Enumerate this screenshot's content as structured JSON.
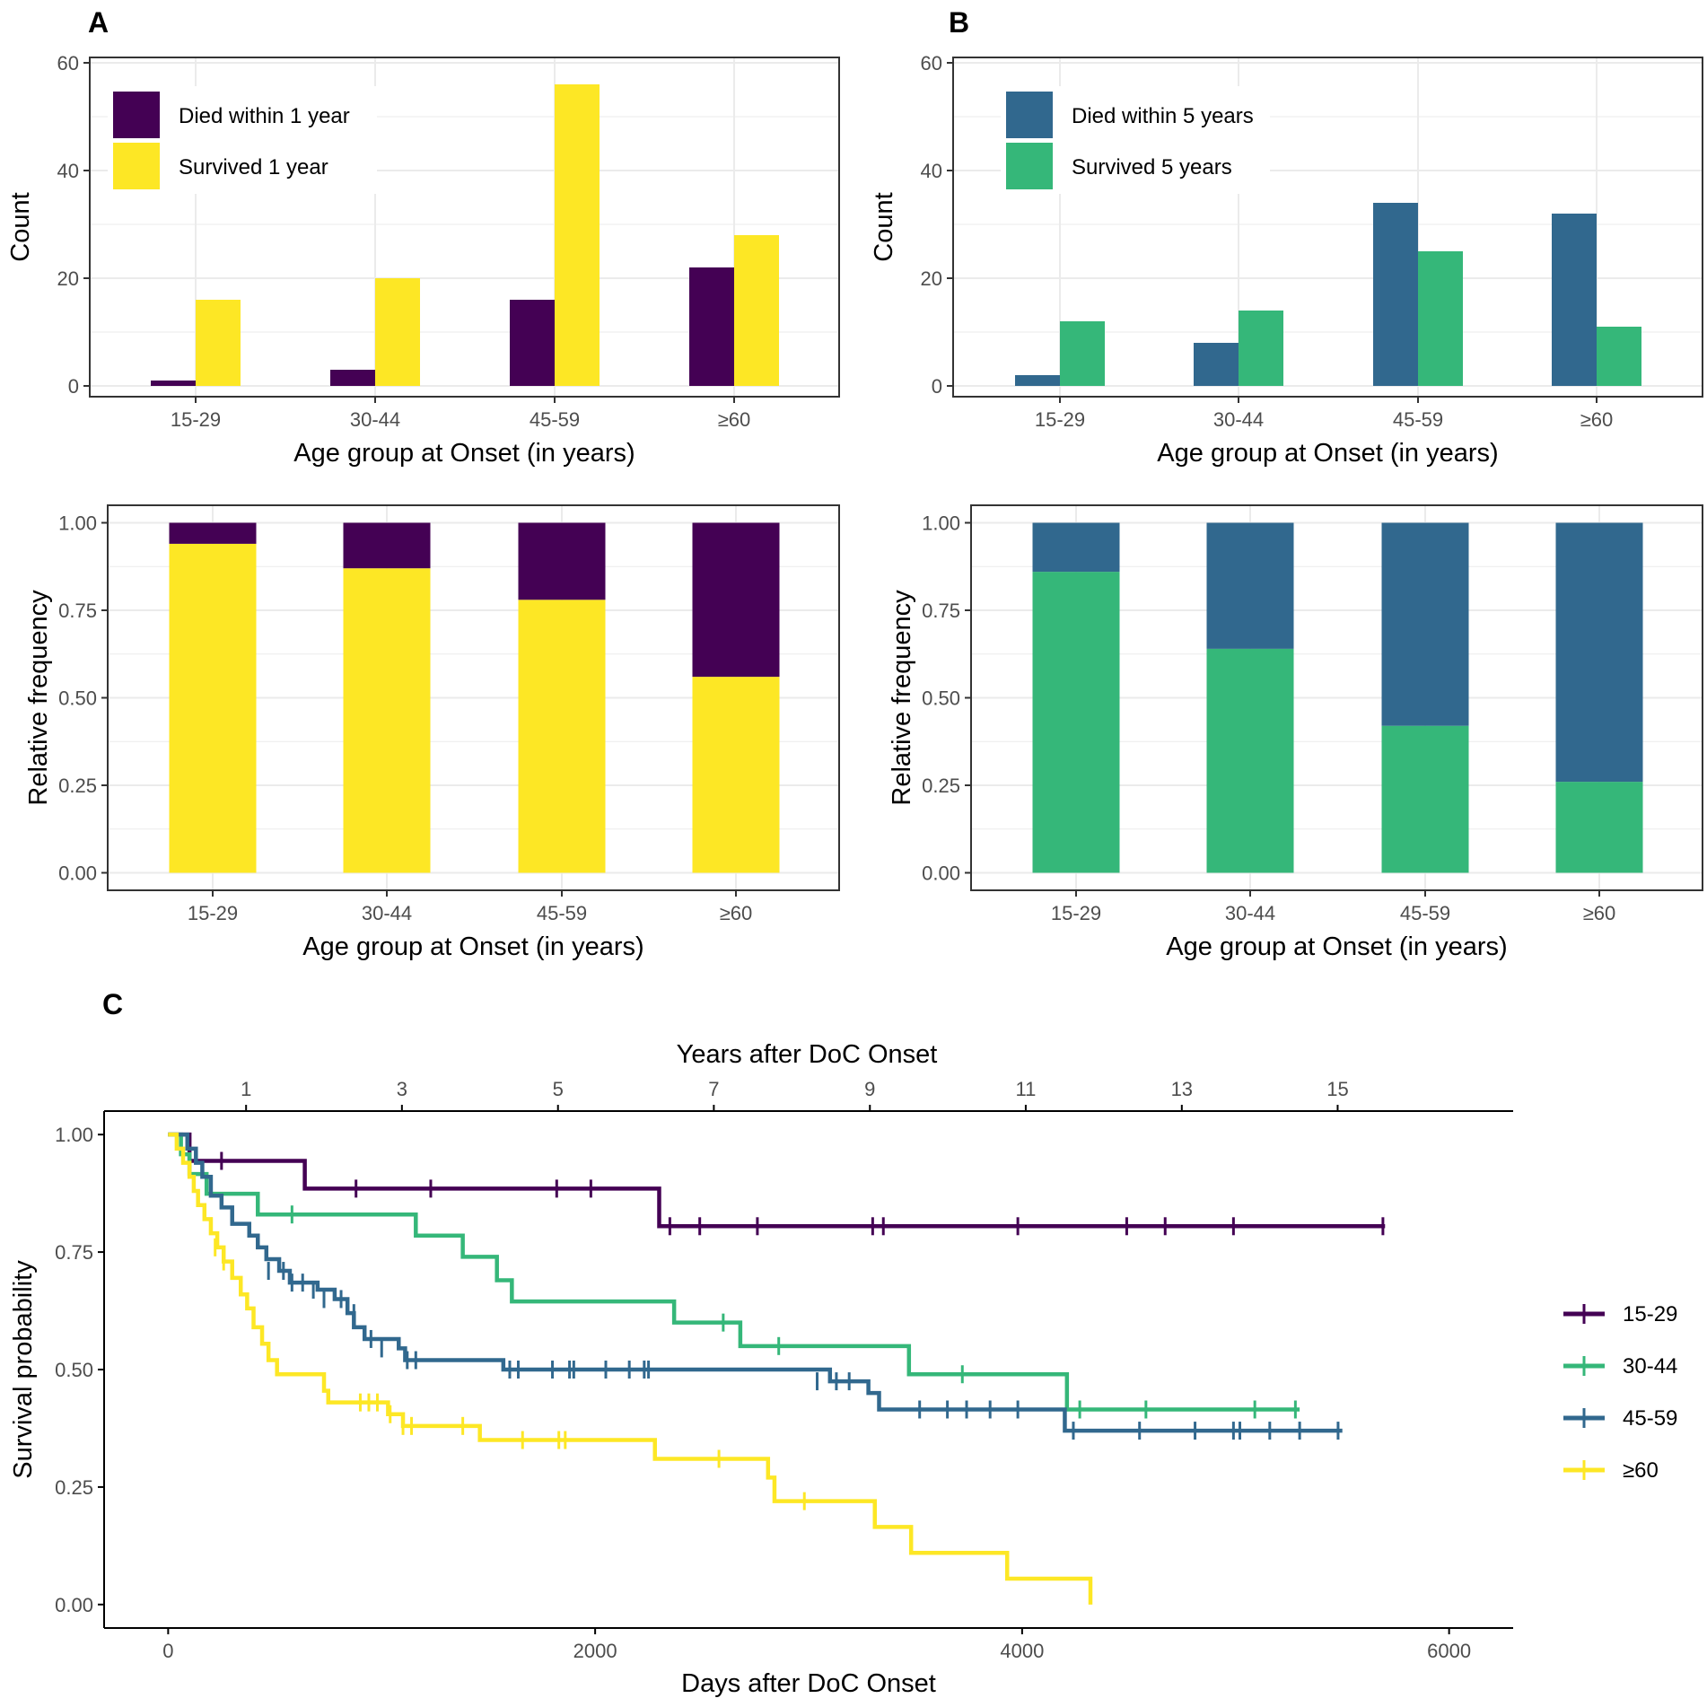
{
  "figure": {
    "panel_labels": [
      "A",
      "B",
      "C"
    ]
  },
  "colors": {
    "died_1y": "#440154",
    "survived_1y": "#FDE725",
    "died_5y": "#31688E",
    "survived_5y": "#35B779",
    "g15_29": "#440154",
    "g30_44": "#35B779",
    "g45_59": "#31688E",
    "g60": "#FDE725",
    "grid": "#ebebeb",
    "frame": "#333333"
  },
  "chart_data": [
    {
      "id": "A-count",
      "panel": "A",
      "type": "bar",
      "categories": [
        "15-29",
        "30-44",
        "45-59",
        "≥60"
      ],
      "series": [
        {
          "name": "Died within 1 year",
          "color_key": "died_1y",
          "values": [
            1,
            3,
            16,
            22
          ]
        },
        {
          "name": "Survived 1 year",
          "color_key": "survived_1y",
          "values": [
            16,
            20,
            56,
            28
          ]
        }
      ],
      "xlabel": "Age group at Onset (in years)",
      "ylabel": "Count",
      "ylim": [
        -2,
        61
      ],
      "yticks": [
        0,
        20,
        40,
        60
      ],
      "legend": "top-left",
      "grid": true
    },
    {
      "id": "A-rel",
      "panel": "A",
      "type": "bar",
      "stacked": true,
      "categories": [
        "15-29",
        "30-44",
        "45-59",
        "≥60"
      ],
      "series": [
        {
          "name": "Survived 1 year",
          "color_key": "survived_1y",
          "values": [
            0.94,
            0.87,
            0.78,
            0.56
          ]
        },
        {
          "name": "Died within 1 year",
          "color_key": "died_1y",
          "values": [
            0.06,
            0.13,
            0.22,
            0.44
          ]
        }
      ],
      "xlabel": "Age group at Onset (in years)",
      "ylabel": "Relative frequency",
      "ylim": [
        -0.05,
        1.05
      ],
      "yticks": [
        0.0,
        0.25,
        0.5,
        0.75,
        1.0
      ],
      "ytick_labels": [
        "0.00",
        "0.25",
        "0.50",
        "0.75",
        "1.00"
      ],
      "grid": true
    },
    {
      "id": "B-count",
      "panel": "B",
      "type": "bar",
      "categories": [
        "15-29",
        "30-44",
        "45-59",
        "≥60"
      ],
      "series": [
        {
          "name": "Died within 5 years",
          "color_key": "died_5y",
          "values": [
            2,
            8,
            34,
            32
          ]
        },
        {
          "name": "Survived 5 years",
          "color_key": "survived_5y",
          "values": [
            12,
            14,
            25,
            11
          ]
        }
      ],
      "xlabel": "Age group at Onset (in years)",
      "ylabel": "Count",
      "ylim": [
        -2,
        61
      ],
      "yticks": [
        0,
        20,
        40,
        60
      ],
      "legend": "top-left",
      "grid": true
    },
    {
      "id": "B-rel",
      "panel": "B",
      "type": "bar",
      "stacked": true,
      "categories": [
        "15-29",
        "30-44",
        "45-59",
        "≥60"
      ],
      "series": [
        {
          "name": "Survived 5 years",
          "color_key": "survived_5y",
          "values": [
            0.86,
            0.64,
            0.42,
            0.26
          ]
        },
        {
          "name": "Died within 5 years",
          "color_key": "died_5y",
          "values": [
            0.14,
            0.36,
            0.58,
            0.74
          ]
        }
      ],
      "xlabel": "Age group at Onset (in years)",
      "ylabel": "Relative frequency",
      "ylim": [
        -0.05,
        1.05
      ],
      "yticks": [
        0.0,
        0.25,
        0.5,
        0.75,
        1.0
      ],
      "ytick_labels": [
        "0.00",
        "0.25",
        "0.50",
        "0.75",
        "1.00"
      ],
      "grid": true
    },
    {
      "id": "C-km",
      "panel": "C",
      "type": "line",
      "step": true,
      "xlabel": "Days after DoC Onset",
      "ylabel": "Survival probability",
      "top_xlabel": "Years after DoC Onset",
      "xlim": [
        -300,
        6300
      ],
      "ylim": [
        -0.05,
        1.05
      ],
      "xticks": [
        0,
        2000,
        4000,
        6000
      ],
      "yticks": [
        0.0,
        0.25,
        0.5,
        0.75,
        1.0
      ],
      "ytick_labels": [
        "0.00",
        "0.25",
        "0.50",
        "0.75",
        "1.00"
      ],
      "top_ticks": [
        {
          "label": "1",
          "days": 365
        },
        {
          "label": "3",
          "days": 1095
        },
        {
          "label": "5",
          "days": 1826
        },
        {
          "label": "7",
          "days": 2556
        },
        {
          "label": "9",
          "days": 3287
        },
        {
          "label": "11",
          "days": 4017
        },
        {
          "label": "13",
          "days": 4748
        },
        {
          "label": "15",
          "days": 5478
        }
      ],
      "legend": "right",
      "series": [
        {
          "name": "15-29",
          "color_key": "g15_29",
          "steps": [
            [
              0,
              1.0
            ],
            [
              100,
              0.944
            ],
            [
              640,
              0.885
            ],
            [
              2300,
              0.805
            ],
            [
              5700,
              0.805
            ]
          ],
          "censors": [
            [
              250,
              0.944
            ],
            [
              880,
              0.885
            ],
            [
              1230,
              0.885
            ],
            [
              1820,
              0.885
            ],
            [
              1980,
              0.885
            ],
            [
              2350,
              0.805
            ],
            [
              2490,
              0.805
            ],
            [
              2760,
              0.805
            ],
            [
              3300,
              0.805
            ],
            [
              3350,
              0.805
            ],
            [
              3980,
              0.805
            ],
            [
              4490,
              0.805
            ],
            [
              4670,
              0.805
            ],
            [
              4990,
              0.805
            ],
            [
              5690,
              0.805
            ]
          ]
        },
        {
          "name": "30-44",
          "color_key": "g30_44",
          "steps": [
            [
              0,
              1.0
            ],
            [
              60,
              0.958
            ],
            [
              100,
              0.916
            ],
            [
              180,
              0.874
            ],
            [
              420,
              0.83
            ],
            [
              1160,
              0.785
            ],
            [
              1380,
              0.74
            ],
            [
              1540,
              0.69
            ],
            [
              1610,
              0.645
            ],
            [
              2370,
              0.6
            ],
            [
              2680,
              0.55
            ],
            [
              3470,
              0.49
            ],
            [
              4210,
              0.415
            ],
            [
              5300,
              0.415
            ]
          ],
          "censors": [
            [
              580,
              0.83
            ],
            [
              2600,
              0.6
            ],
            [
              2860,
              0.55
            ],
            [
              3720,
              0.49
            ],
            [
              4270,
              0.415
            ],
            [
              4580,
              0.415
            ],
            [
              5090,
              0.415
            ],
            [
              5280,
              0.415
            ]
          ]
        },
        {
          "name": "45-59",
          "color_key": "g45_59",
          "steps": [
            [
              0,
              1.0
            ],
            [
              90,
              0.97
            ],
            [
              130,
              0.94
            ],
            [
              160,
              0.91
            ],
            [
              200,
              0.87
            ],
            [
              250,
              0.845
            ],
            [
              300,
              0.81
            ],
            [
              380,
              0.785
            ],
            [
              420,
              0.76
            ],
            [
              460,
              0.735
            ],
            [
              520,
              0.71
            ],
            [
              570,
              0.685
            ],
            [
              700,
              0.67
            ],
            [
              780,
              0.65
            ],
            [
              840,
              0.62
            ],
            [
              870,
              0.59
            ],
            [
              920,
              0.565
            ],
            [
              1080,
              0.545
            ],
            [
              1110,
              0.52
            ],
            [
              1570,
              0.5
            ],
            [
              3100,
              0.475
            ],
            [
              3280,
              0.45
            ],
            [
              3330,
              0.415
            ],
            [
              4200,
              0.37
            ],
            [
              5500,
              0.37
            ]
          ],
          "censors": [
            [
              470,
              0.71
            ],
            [
              540,
              0.71
            ],
            [
              580,
              0.685
            ],
            [
              630,
              0.685
            ],
            [
              680,
              0.67
            ],
            [
              730,
              0.65
            ],
            [
              810,
              0.65
            ],
            [
              870,
              0.62
            ],
            [
              950,
              0.565
            ],
            [
              1000,
              0.545
            ],
            [
              1120,
              0.52
            ],
            [
              1160,
              0.52
            ],
            [
              1600,
              0.5
            ],
            [
              1640,
              0.5
            ],
            [
              1800,
              0.5
            ],
            [
              1880,
              0.5
            ],
            [
              1900,
              0.5
            ],
            [
              2050,
              0.5
            ],
            [
              2160,
              0.5
            ],
            [
              2230,
              0.5
            ],
            [
              2250,
              0.5
            ],
            [
              3040,
              0.475
            ],
            [
              3130,
              0.475
            ],
            [
              3190,
              0.475
            ],
            [
              3520,
              0.415
            ],
            [
              3650,
              0.415
            ],
            [
              3740,
              0.415
            ],
            [
              3850,
              0.415
            ],
            [
              3980,
              0.415
            ],
            [
              4240,
              0.37
            ],
            [
              4550,
              0.37
            ],
            [
              4810,
              0.37
            ],
            [
              4990,
              0.37
            ],
            [
              5020,
              0.37
            ],
            [
              5160,
              0.37
            ],
            [
              5300,
              0.37
            ],
            [
              5480,
              0.37
            ]
          ]
        },
        {
          "name": "≥60",
          "color_key": "g60",
          "steps": [
            [
              0,
              1.0
            ],
            [
              40,
              0.97
            ],
            [
              70,
              0.94
            ],
            [
              100,
              0.91
            ],
            [
              120,
              0.88
            ],
            [
              140,
              0.85
            ],
            [
              170,
              0.82
            ],
            [
              200,
              0.79
            ],
            [
              230,
              0.76
            ],
            [
              260,
              0.73
            ],
            [
              300,
              0.695
            ],
            [
              340,
              0.66
            ],
            [
              370,
              0.63
            ],
            [
              400,
              0.59
            ],
            [
              440,
              0.555
            ],
            [
              470,
              0.52
            ],
            [
              510,
              0.49
            ],
            [
              730,
              0.455
            ],
            [
              750,
              0.43
            ],
            [
              1030,
              0.405
            ],
            [
              1100,
              0.38
            ],
            [
              1460,
              0.35
            ],
            [
              2280,
              0.31
            ],
            [
              2810,
              0.27
            ],
            [
              2840,
              0.22
            ],
            [
              3310,
              0.165
            ],
            [
              3480,
              0.11
            ],
            [
              3930,
              0.055
            ],
            [
              4320,
              0.0
            ]
          ],
          "censors": [
            [
              220,
              0.76
            ],
            [
              260,
              0.73
            ],
            [
              900,
              0.43
            ],
            [
              940,
              0.43
            ],
            [
              980,
              0.43
            ],
            [
              1040,
              0.405
            ],
            [
              1100,
              0.38
            ],
            [
              1140,
              0.38
            ],
            [
              1380,
              0.38
            ],
            [
              1660,
              0.35
            ],
            [
              1830,
              0.35
            ],
            [
              1860,
              0.35
            ],
            [
              2580,
              0.31
            ],
            [
              2980,
              0.22
            ]
          ]
        }
      ]
    }
  ]
}
